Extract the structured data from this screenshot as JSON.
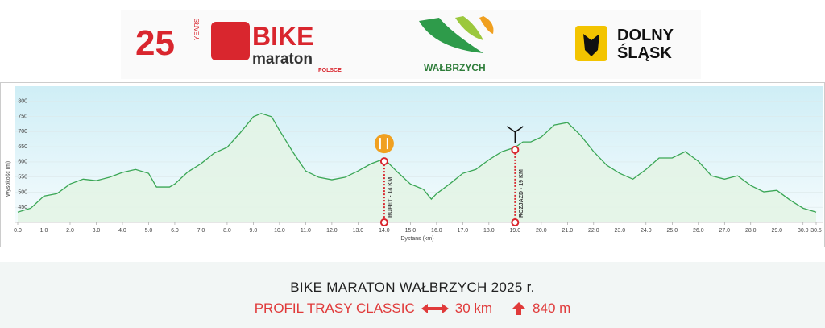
{
  "logos": {
    "anniversary": "25",
    "anniversary_unit": "YEARS",
    "brand": "BIKE",
    "brand_sub": "maraton",
    "brand_country": "POLSCE",
    "city": "WAŁBRZYCH",
    "region_line1": "DOLNY",
    "region_line2": "ŚLĄSK"
  },
  "chart_data": {
    "type": "area",
    "y_label": "Wysokość (m)",
    "x_label": "Dystans (km)",
    "x": [
      0,
      0.5,
      1,
      1.5,
      2,
      2.5,
      3,
      3.5,
      4,
      4.5,
      5,
      5.3,
      5.8,
      6,
      6.5,
      7,
      7.5,
      8,
      8.5,
      9,
      9.3,
      9.7,
      10,
      10.5,
      11,
      11.5,
      12,
      12.5,
      13,
      13.5,
      14,
      14.5,
      15,
      15.5,
      15.8,
      16,
      16.5,
      17,
      17.5,
      18,
      18.5,
      19,
      19.3,
      19.6,
      20,
      20.5,
      21,
      21.5,
      22,
      22.5,
      23,
      23.5,
      24,
      24.5,
      25,
      25.5,
      26,
      26.5,
      27,
      27.5,
      28,
      28.5,
      29,
      29.5,
      30,
      30.5
    ],
    "series": [
      {
        "name": "Profil",
        "color": "#3aa655",
        "values": [
          434,
          447,
          487,
          495,
          527,
          543,
          538,
          549,
          565,
          575,
          562,
          517,
          517,
          527,
          567,
          594,
          629,
          648,
          696,
          749,
          760,
          749,
          704,
          634,
          570,
          549,
          541,
          549,
          570,
          594,
          610,
          567,
          527,
          509,
          477,
          495,
          527,
          562,
          575,
          607,
          634,
          648,
          666,
          666,
          682,
          722,
          730,
          688,
          634,
          589,
          562,
          543,
          575,
          613,
          613,
          634,
          602,
          554,
          543,
          554,
          522,
          501,
          506,
          474,
          447,
          434
        ]
      }
    ],
    "xlim": [
      0,
      30.5
    ],
    "ylim": [
      400,
      850
    ],
    "yticks": [
      450,
      500,
      550,
      600,
      650,
      700,
      750,
      800
    ],
    "xticks": [
      {
        "value": 0,
        "label": "0.0"
      },
      {
        "value": 1,
        "label": "1.0"
      },
      {
        "value": 2,
        "label": "2.0"
      },
      {
        "value": 3,
        "label": "3.0"
      },
      {
        "value": 4,
        "label": "4.0"
      },
      {
        "value": 5,
        "label": "5.0"
      },
      {
        "value": 6,
        "label": "6.0"
      },
      {
        "value": 7,
        "label": "7.0"
      },
      {
        "value": 8,
        "label": "8.0"
      },
      {
        "value": 9,
        "label": "9.0"
      },
      {
        "value": 10,
        "label": "10.0"
      },
      {
        "value": 11,
        "label": "11.0"
      },
      {
        "value": 12,
        "label": "12.0"
      },
      {
        "value": 13,
        "label": "13.0"
      },
      {
        "value": 14,
        "label": "14.0"
      },
      {
        "value": 15,
        "label": "15.0"
      },
      {
        "value": 16,
        "label": "16.0"
      },
      {
        "value": 17,
        "label": "17.0"
      },
      {
        "value": 18,
        "label": "18.0"
      },
      {
        "value": 19,
        "label": "19.0"
      },
      {
        "value": 20,
        "label": "20.0"
      },
      {
        "value": 21,
        "label": "21.0"
      },
      {
        "value": 22,
        "label": "22.0"
      },
      {
        "value": 23,
        "label": "23.0"
      },
      {
        "value": 24,
        "label": "24.0"
      },
      {
        "value": 25,
        "label": "25.0"
      },
      {
        "value": 26,
        "label": "26.0"
      },
      {
        "value": 27,
        "label": "27.0"
      },
      {
        "value": 28,
        "label": "28.0"
      },
      {
        "value": 29,
        "label": "29.0"
      },
      {
        "value": 30,
        "label": "30.0"
      },
      {
        "value": 30.5,
        "label": "30.5"
      }
    ],
    "markers": [
      {
        "x": 14,
        "label": "BUFET - 14 KM"
      },
      {
        "x": 19,
        "label": "ROZJAZD - 19 KM"
      }
    ]
  },
  "footer": {
    "title": "BIKE MARATON WAŁBRZYCH 2025 r.",
    "route": "PROFIL TRASY CLASSIC",
    "distance": "30 km",
    "climb": "840 m"
  }
}
